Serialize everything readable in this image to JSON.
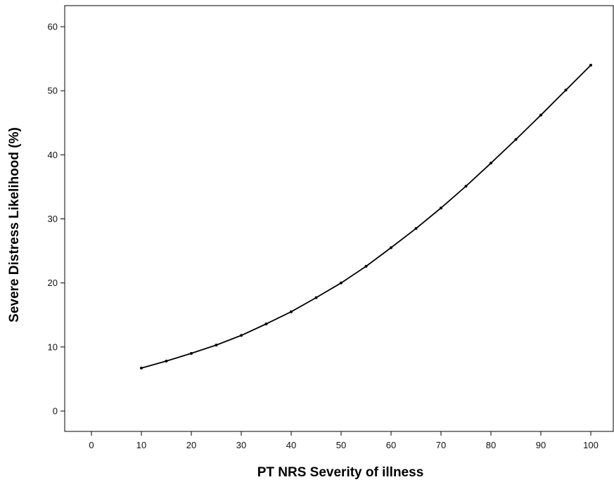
{
  "chart_data": {
    "type": "line",
    "title": "",
    "xlabel": "PT NRS Severity of illness",
    "ylabel": "Severe Distress Likelihood (%)",
    "xlim": [
      -5,
      105
    ],
    "ylim": [
      -3,
      63
    ],
    "xticks": [
      0,
      10,
      20,
      30,
      40,
      50,
      60,
      70,
      80,
      90,
      100
    ],
    "yticks": [
      0,
      10,
      20,
      30,
      40,
      50,
      60
    ],
    "grid": false,
    "legend": "none",
    "line_color": "#000000",
    "series": [
      {
        "x": [
          10,
          15,
          20,
          25,
          30,
          35,
          40,
          45,
          50,
          55,
          60,
          65,
          70,
          75,
          80,
          85,
          90,
          95,
          100
        ],
        "y": [
          6.7,
          7.8,
          9.0,
          10.3,
          11.8,
          13.6,
          15.5,
          17.7,
          20.0,
          22.6,
          25.5,
          28.5,
          31.7,
          35.1,
          38.7,
          42.4,
          46.2,
          50.1,
          54.0
        ]
      }
    ]
  }
}
